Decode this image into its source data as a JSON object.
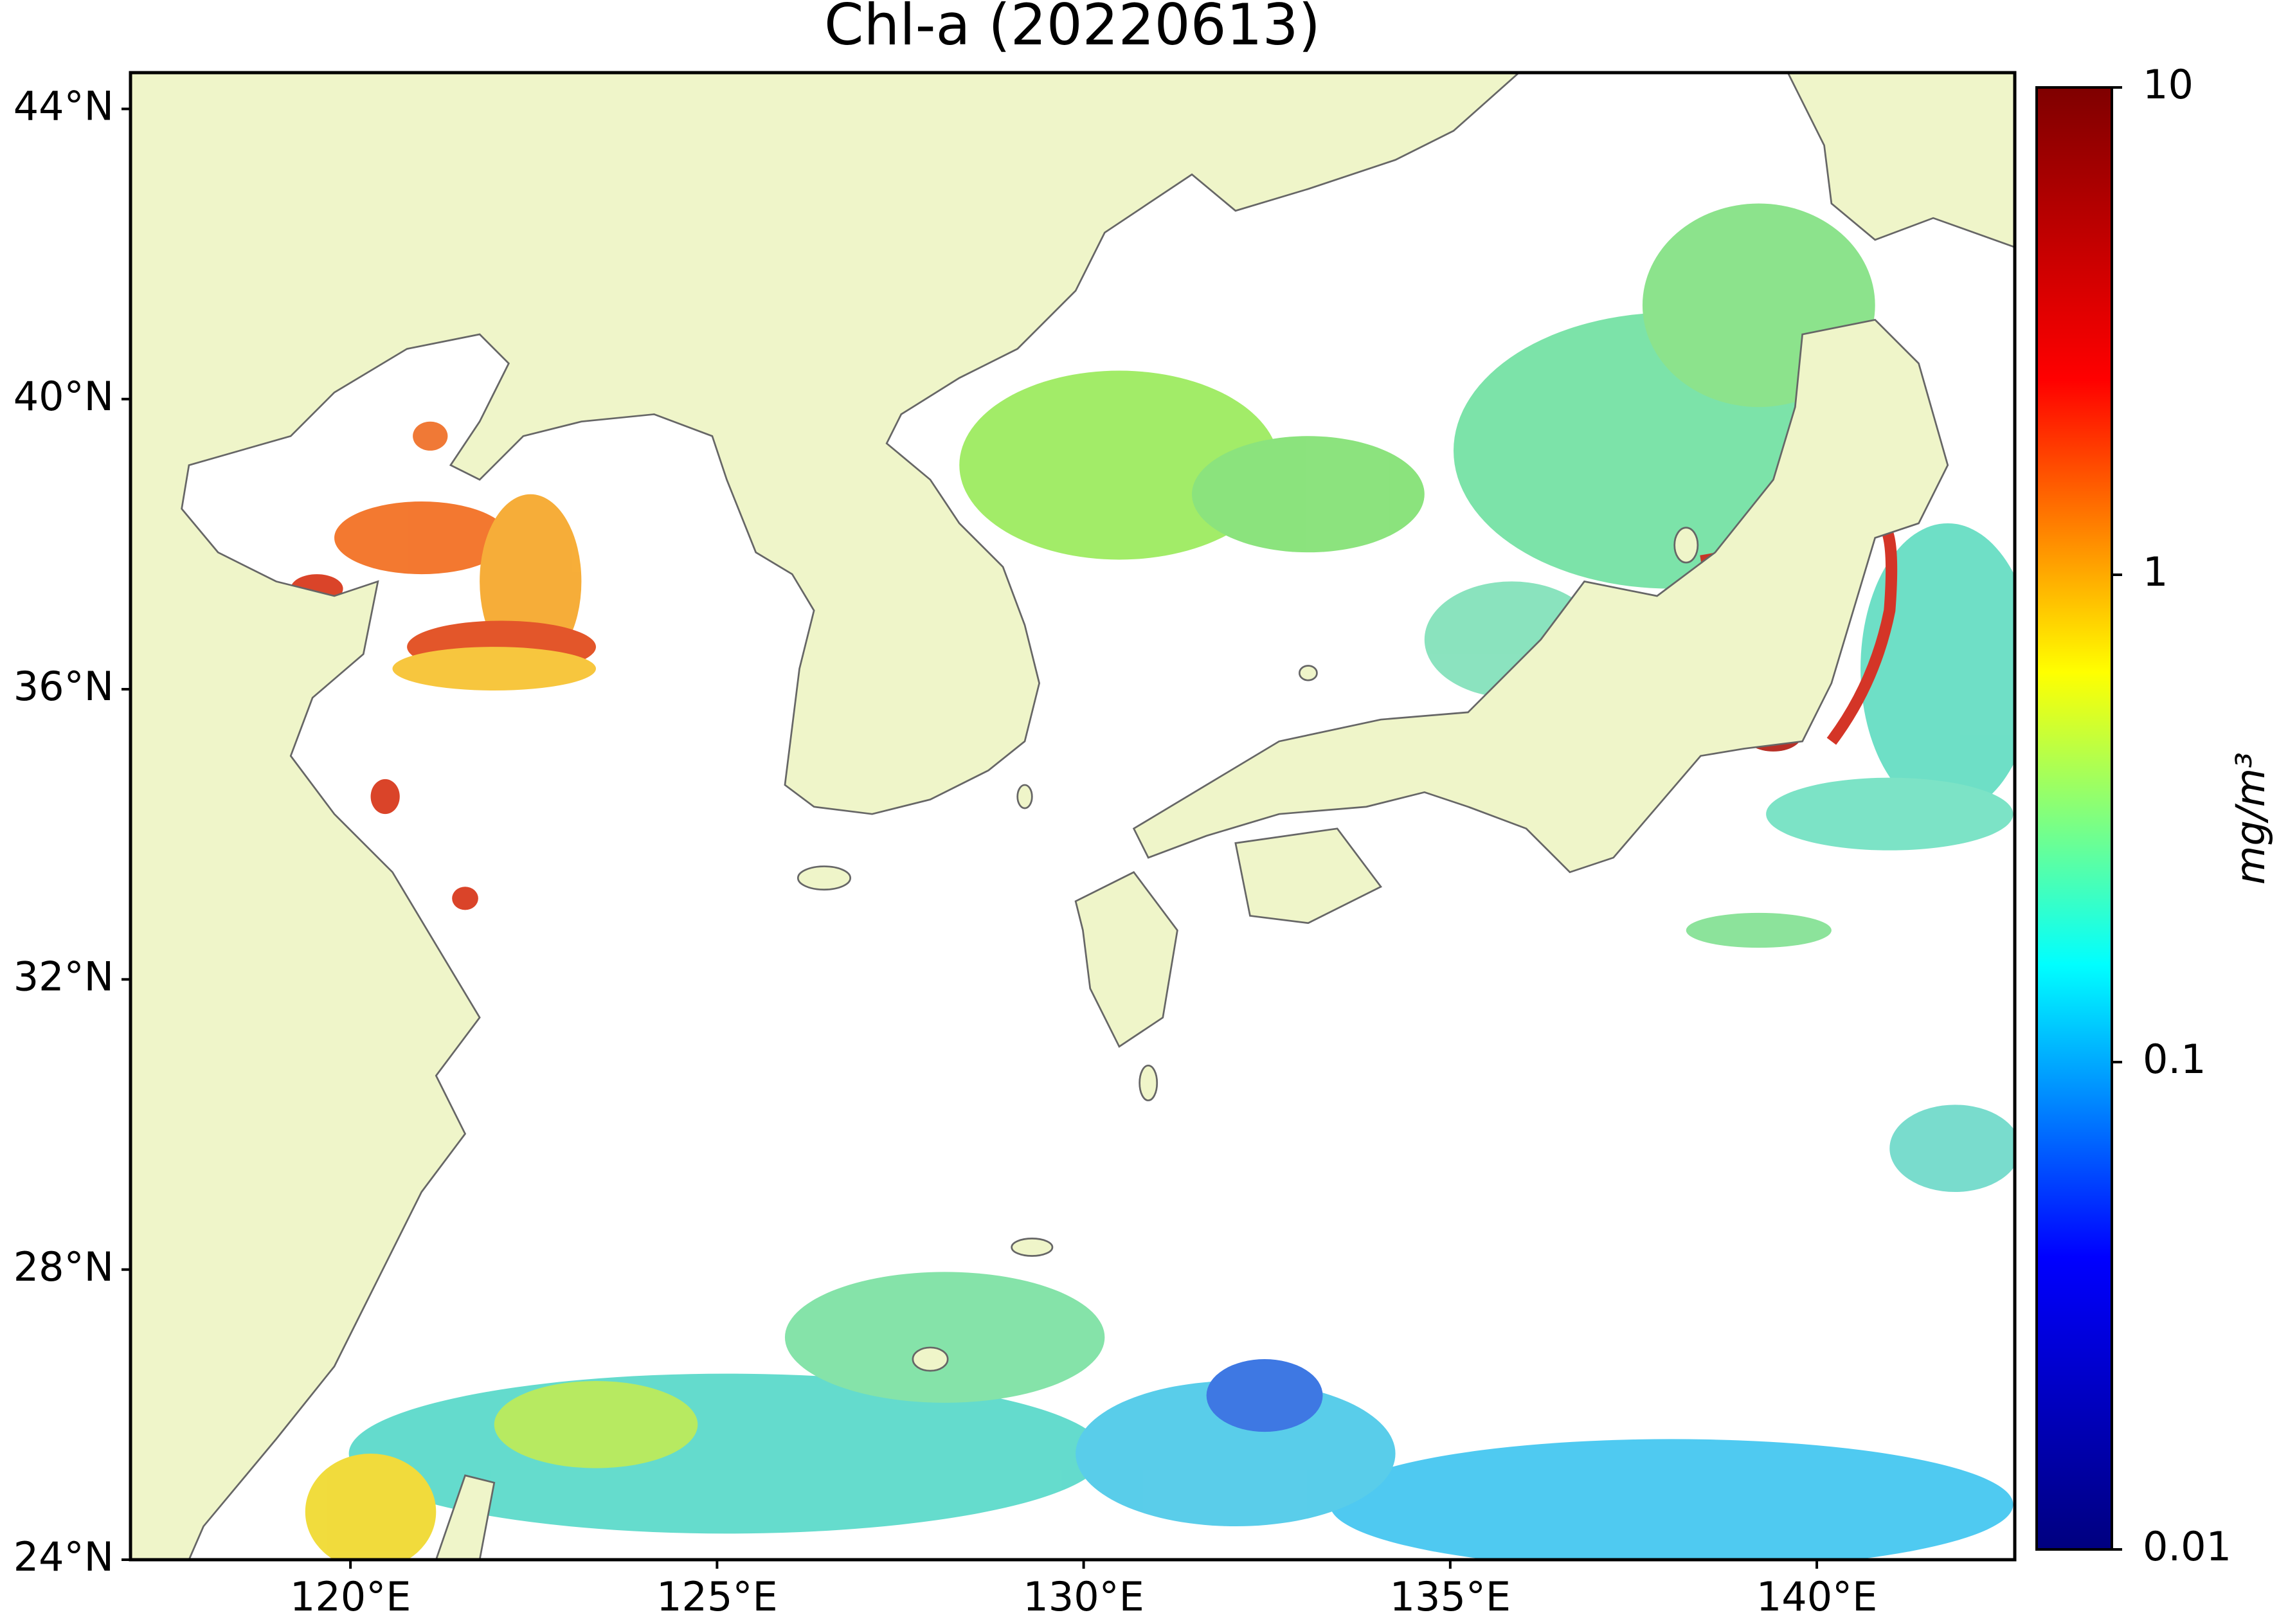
{
  "map": {
    "title": "Chl-a (20220613)",
    "xlim": [
      117,
      142.7
    ],
    "ylim": [
      24,
      44.5
    ],
    "xticks": [
      {
        "value": 120,
        "label": "120°E"
      },
      {
        "value": 125,
        "label": "125°E"
      },
      {
        "value": 130,
        "label": "130°E"
      },
      {
        "value": 135,
        "label": "135°E"
      },
      {
        "value": 140,
        "label": "140°E"
      }
    ],
    "yticks": [
      {
        "value": 24,
        "label": "24°N"
      },
      {
        "value": 28,
        "label": "28°N"
      },
      {
        "value": 32,
        "label": "32°N"
      },
      {
        "value": 36,
        "label": "36°N"
      },
      {
        "value": 40,
        "label": "40°N"
      },
      {
        "value": 44,
        "label": "44°N"
      }
    ]
  },
  "colorbar": {
    "label": "mg/m³",
    "scale": "log",
    "lim": [
      0.01,
      10
    ],
    "ticks": [
      0.01,
      0.1,
      1,
      10
    ],
    "colors": [
      "#00007f",
      "#0000ff",
      "#00ffff",
      "#ffff00",
      "#ff0000",
      "#7f0000"
    ]
  }
}
